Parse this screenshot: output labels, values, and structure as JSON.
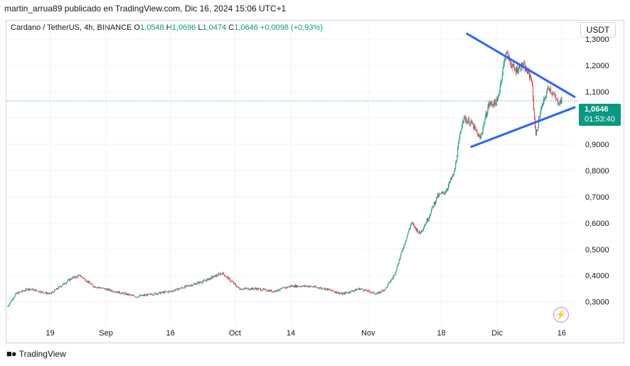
{
  "header": {
    "publisher": "martin_arrua89 publicado en TradingView.com, Dic 16, 2024 15:06 UTC+1"
  },
  "legend": {
    "symbol": "Cardano / TetherUS, 4h, BINANCE",
    "open_label": "O",
    "open": "1,0548",
    "high_label": "H",
    "high": "1,0696",
    "low_label": "L",
    "low": "1,0474",
    "close_label": "C",
    "close": "1,0646",
    "change": "+0,0098 (+0,93%)"
  },
  "currency_button": "USDT",
  "price_tag": {
    "price": "1,0646",
    "countdown": "01:53:40"
  },
  "footer": {
    "brand": "TradingView",
    "logo_icon": "tradingview-logo-icon"
  },
  "flash_icon": "lightning-icon",
  "colors": {
    "up": "#089981",
    "down": "#f23645",
    "trendline": "#2962ff",
    "grid": "#f0f3fa"
  },
  "chart_data": {
    "type": "candlestick",
    "title": "Cardano / TetherUS, 4h, BINANCE",
    "ylim": [
      0.21,
      1.37
    ],
    "y_ticks": [
      "0,3000",
      "0,4000",
      "0,5000",
      "0,6000",
      "0,7000",
      "0,8000",
      "0,9000",
      "1,0000",
      "1,1000",
      "1,2000",
      "1,3000"
    ],
    "y_tick_values": [
      0.3,
      0.4,
      0.5,
      0.6,
      0.7,
      0.8,
      0.9,
      1.0,
      1.1,
      1.2,
      1.3
    ],
    "x_ticks": [
      "19",
      "Sep",
      "16",
      "Oct",
      "14",
      "Nov",
      "18",
      "Dic",
      "16"
    ],
    "x_tick_dates": [
      "2024-08-19",
      "2024-09-01",
      "2024-09-16",
      "2024-10-01",
      "2024-10-14",
      "2024-11-01",
      "2024-11-18",
      "2024-12-01",
      "2024-12-16"
    ],
    "x_start": "2024-08-09",
    "x_end": "2024-12-19",
    "current_price": 1.0646,
    "close_path": [
      [
        "2024-08-09",
        0.28
      ],
      [
        "2024-08-11",
        0.33
      ],
      [
        "2024-08-14",
        0.35
      ],
      [
        "2024-08-19",
        0.33
      ],
      [
        "2024-08-24",
        0.39
      ],
      [
        "2024-08-26",
        0.4
      ],
      [
        "2024-08-29",
        0.36
      ],
      [
        "2024-09-03",
        0.34
      ],
      [
        "2024-09-08",
        0.32
      ],
      [
        "2024-09-12",
        0.33
      ],
      [
        "2024-09-16",
        0.34
      ],
      [
        "2024-09-20",
        0.36
      ],
      [
        "2024-09-24",
        0.38
      ],
      [
        "2024-09-28",
        0.41
      ],
      [
        "2024-10-02",
        0.35
      ],
      [
        "2024-10-06",
        0.35
      ],
      [
        "2024-10-10",
        0.34
      ],
      [
        "2024-10-14",
        0.36
      ],
      [
        "2024-10-18",
        0.36
      ],
      [
        "2024-10-22",
        0.35
      ],
      [
        "2024-10-26",
        0.33
      ],
      [
        "2024-10-30",
        0.35
      ],
      [
        "2024-11-03",
        0.33
      ],
      [
        "2024-11-05",
        0.35
      ],
      [
        "2024-11-07",
        0.4
      ],
      [
        "2024-11-09",
        0.5
      ],
      [
        "2024-11-11",
        0.6
      ],
      [
        "2024-11-13",
        0.56
      ],
      [
        "2024-11-15",
        0.62
      ],
      [
        "2024-11-17",
        0.7
      ],
      [
        "2024-11-19",
        0.72
      ],
      [
        "2024-11-21",
        0.79
      ],
      [
        "2024-11-23",
        1.0
      ],
      [
        "2024-11-25",
        0.98
      ],
      [
        "2024-11-27",
        0.92
      ],
      [
        "2024-11-29",
        1.05
      ],
      [
        "2024-12-01",
        1.06
      ],
      [
        "2024-12-03",
        1.25
      ],
      [
        "2024-12-05",
        1.18
      ],
      [
        "2024-12-07",
        1.2
      ],
      [
        "2024-12-09",
        1.15
      ],
      [
        "2024-12-10",
        0.93
      ],
      [
        "2024-12-11",
        1.02
      ],
      [
        "2024-12-13",
        1.12
      ],
      [
        "2024-12-15",
        1.06
      ],
      [
        "2024-12-16",
        1.0646
      ]
    ],
    "trendlines": [
      {
        "name": "upper",
        "points": [
          [
            "2024-11-24",
            1.32
          ],
          [
            "2024-12-19",
            1.08
          ]
        ]
      },
      {
        "name": "lower",
        "points": [
          [
            "2024-11-25",
            0.89
          ],
          [
            "2024-12-19",
            1.04
          ]
        ]
      }
    ]
  }
}
